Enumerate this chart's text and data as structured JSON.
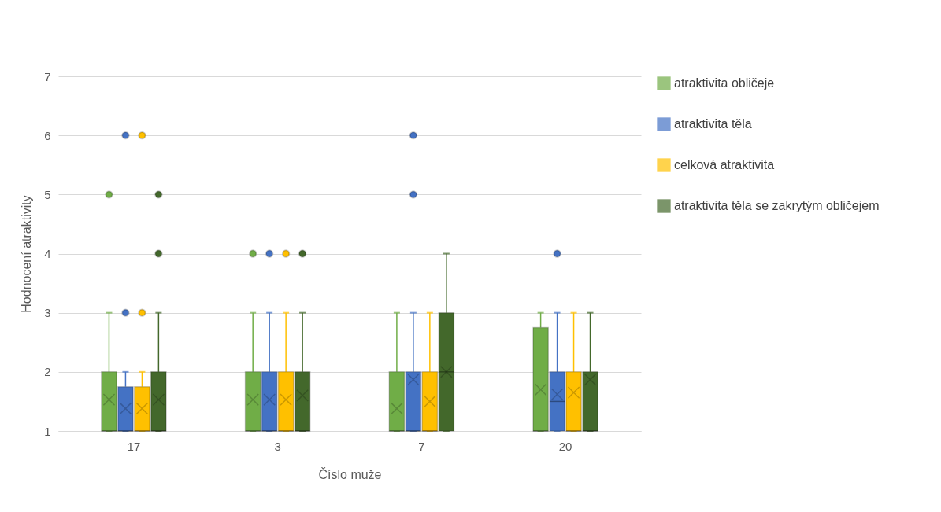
{
  "chart_data": {
    "type": "box",
    "xlabel": "Číslo muže",
    "ylabel": "Hodnocení atraktivity",
    "categories": [
      "17",
      "3",
      "7",
      "20"
    ],
    "ylim": [
      1,
      7
    ],
    "yticks": [
      1,
      2,
      3,
      4,
      5,
      6,
      7
    ],
    "grid": "y",
    "legend": "right",
    "marker": "cross",
    "series": [
      {
        "name": "atraktivita obličeje",
        "color": "#70ad47",
        "boxes": [
          {
            "low": 1,
            "q1": 1,
            "median": 1,
            "q3": 2,
            "high": 3,
            "mean": 1.53,
            "outliers": [
              5
            ]
          },
          {
            "low": 1,
            "q1": 1,
            "median": 1,
            "q3": 2,
            "high": 3,
            "mean": 1.53,
            "outliers": [
              4
            ]
          },
          {
            "low": 1,
            "q1": 1,
            "median": 1,
            "q3": 2,
            "high": 3,
            "mean": 1.38
          },
          {
            "low": 1,
            "q1": 1,
            "median": 1,
            "q3": 2.75,
            "high": 3,
            "mean": 1.7
          }
        ]
      },
      {
        "name": "atraktivita těla",
        "color": "#4472c4",
        "boxes": [
          {
            "low": 1,
            "q1": 1,
            "median": 1,
            "q3": 1.75,
            "high": 2,
            "mean": 1.38,
            "outliers": [
              3,
              6
            ]
          },
          {
            "low": 1,
            "q1": 1,
            "median": 1,
            "q3": 2,
            "high": 3,
            "mean": 1.53,
            "outliers": [
              4
            ]
          },
          {
            "low": 1,
            "q1": 1,
            "median": 1,
            "q3": 2,
            "high": 3,
            "mean": 1.87,
            "outliers": [
              5,
              6
            ]
          },
          {
            "low": 1,
            "q1": 1,
            "median": 1.5,
            "q3": 2,
            "high": 3,
            "mean": 1.62,
            "outliers": [
              4
            ]
          }
        ]
      },
      {
        "name": "celková atraktivita",
        "color": "#ffc000",
        "boxes": [
          {
            "low": 1,
            "q1": 1,
            "median": 1,
            "q3": 1.75,
            "high": 2,
            "mean": 1.38,
            "outliers": [
              3,
              6
            ]
          },
          {
            "low": 1,
            "q1": 1,
            "median": 1,
            "q3": 2,
            "high": 3,
            "mean": 1.53,
            "outliers": [
              4
            ]
          },
          {
            "low": 1,
            "q1": 1,
            "median": 1,
            "q3": 2,
            "high": 3,
            "mean": 1.5
          },
          {
            "low": 1,
            "q1": 1,
            "median": 1,
            "q3": 2,
            "high": 3,
            "mean": 1.65
          }
        ]
      },
      {
        "name": "atraktivita těla se zakrytým obličejem",
        "color": "#43682b",
        "boxes": [
          {
            "low": 1,
            "q1": 1,
            "median": 1,
            "q3": 2,
            "high": 3,
            "mean": 1.53,
            "outliers": [
              4,
              5
            ]
          },
          {
            "low": 1,
            "q1": 1,
            "median": 1,
            "q3": 2,
            "high": 3,
            "mean": 1.6,
            "outliers": [
              4
            ]
          },
          {
            "low": 1,
            "q1": 1,
            "median": 2,
            "q3": 3,
            "high": 4,
            "mean": 2
          },
          {
            "low": 1,
            "q1": 1,
            "median": 1,
            "q3": 2,
            "high": 3,
            "mean": 1.87
          }
        ]
      }
    ]
  }
}
